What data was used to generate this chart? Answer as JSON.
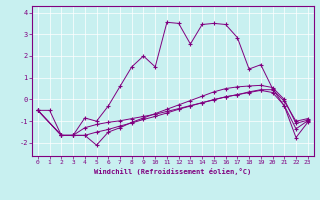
{
  "xlabel": "Windchill (Refroidissement éolien,°C)",
  "background_color": "#c8f0f0",
  "line_color": "#800080",
  "xlim": [
    -0.5,
    23.5
  ],
  "ylim": [
    -2.6,
    4.3
  ],
  "yticks": [
    -2,
    -1,
    0,
    1,
    2,
    3,
    4
  ],
  "xticks": [
    0,
    1,
    2,
    3,
    4,
    5,
    6,
    7,
    8,
    9,
    10,
    11,
    12,
    13,
    14,
    15,
    16,
    17,
    18,
    19,
    20,
    21,
    22,
    23
  ],
  "line1_x": [
    0,
    1,
    2,
    3,
    4,
    5,
    6,
    7,
    8,
    9,
    10,
    11,
    12,
    13,
    14,
    15,
    16,
    17,
    18,
    19,
    20,
    21,
    22,
    23
  ],
  "line1_y": [
    -0.5,
    -0.5,
    -1.65,
    -1.65,
    -0.85,
    -1.0,
    -0.3,
    0.6,
    1.5,
    2.0,
    1.5,
    3.55,
    3.5,
    2.55,
    3.45,
    3.5,
    3.45,
    2.85,
    1.4,
    1.6,
    0.5,
    -0.3,
    -1.75,
    -1.05
  ],
  "line2_x": [
    0,
    2,
    3,
    4,
    5,
    6,
    7,
    8,
    9,
    10,
    11,
    12,
    13,
    14,
    15,
    16,
    17,
    18,
    19,
    20,
    21,
    22,
    23
  ],
  "line2_y": [
    -0.5,
    -1.65,
    -1.65,
    -1.65,
    -2.1,
    -1.5,
    -1.3,
    -1.05,
    -0.85,
    -0.65,
    -0.45,
    -0.25,
    -0.05,
    0.15,
    0.35,
    0.5,
    0.58,
    0.62,
    0.65,
    0.55,
    0.0,
    -1.1,
    -0.95
  ],
  "line3_x": [
    0,
    2,
    3,
    4,
    5,
    6,
    7,
    8,
    9,
    10,
    11,
    12,
    13,
    14,
    15,
    16,
    17,
    18,
    19,
    20,
    21,
    22,
    23
  ],
  "line3_y": [
    -0.5,
    -1.65,
    -1.65,
    -1.3,
    -1.15,
    -1.05,
    -0.98,
    -0.88,
    -0.78,
    -0.68,
    -0.55,
    -0.42,
    -0.28,
    -0.15,
    -0.02,
    0.12,
    0.22,
    0.35,
    0.45,
    0.45,
    -0.08,
    -1.0,
    -0.88
  ],
  "line4_x": [
    0,
    2,
    3,
    4,
    5,
    6,
    7,
    8,
    9,
    10,
    11,
    12,
    13,
    14,
    15,
    16,
    17,
    18,
    19,
    20,
    21,
    22,
    23
  ],
  "line4_y": [
    -0.5,
    -1.65,
    -1.65,
    -1.65,
    -1.5,
    -1.38,
    -1.22,
    -1.08,
    -0.92,
    -0.78,
    -0.62,
    -0.45,
    -0.3,
    -0.15,
    0.0,
    0.12,
    0.22,
    0.32,
    0.42,
    0.32,
    -0.28,
    -1.35,
    -0.98
  ]
}
